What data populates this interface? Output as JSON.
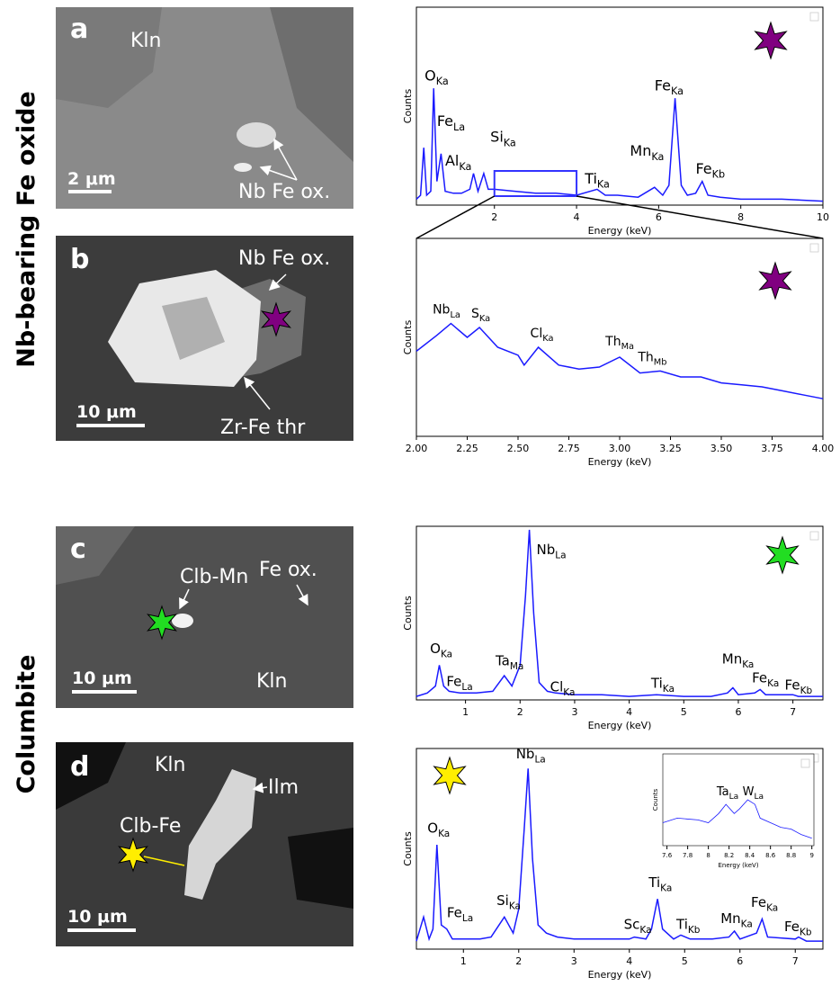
{
  "side_labels": [
    "Nb-bearing Fe oxide",
    "Columbite"
  ],
  "images": [
    {
      "letter": "a",
      "labels": [
        "Kln",
        "Nb Fe ox."
      ],
      "scale": "2 μm",
      "star_color": null
    },
    {
      "letter": "b",
      "labels": [
        "Nb Fe ox.",
        "Zr-Fe thr"
      ],
      "scale": "10 μm",
      "star_color": "#800080"
    },
    {
      "letter": "c",
      "labels": [
        "Clb-Mn",
        "Fe ox.",
        "Kln"
      ],
      "scale": "10 μm",
      "star_color": "#22dd22"
    },
    {
      "letter": "d",
      "labels": [
        "Kln",
        "Ilm",
        "Clb-Fe"
      ],
      "scale": "10 μm",
      "star_color": "#ffee00"
    }
  ],
  "chart_data": [
    {
      "type": "line",
      "color": "#1a1aff",
      "marker_color": "#800080",
      "xlabel": "Energy (keV)",
      "ylabel": "Counts",
      "xlim": [
        0.1,
        10
      ],
      "ylim": [
        0,
        100
      ],
      "xticks": [
        2,
        4,
        6,
        8,
        10
      ],
      "x": [
        0.1,
        0.2,
        0.28,
        0.35,
        0.45,
        0.52,
        0.6,
        0.7,
        0.8,
        1.0,
        1.2,
        1.4,
        1.49,
        1.6,
        1.74,
        1.85,
        2.0,
        2.5,
        3.0,
        3.5,
        4.0,
        4.5,
        4.7,
        5.0,
        5.5,
        5.9,
        6.1,
        6.25,
        6.4,
        6.55,
        6.7,
        6.9,
        7.06,
        7.2,
        7.5,
        8.0,
        9.0,
        10.0
      ],
      "values": [
        3,
        5,
        29,
        5,
        7,
        59,
        12,
        26,
        7,
        6,
        6,
        8,
        16,
        7,
        16,
        8,
        8,
        7,
        6,
        6,
        5,
        8,
        5,
        5,
        4,
        9,
        5,
        10,
        54,
        10,
        5,
        6,
        12,
        5,
        4,
        3,
        3,
        2
      ],
      "annotations": [
        {
          "text": "O",
          "sub": "Ka",
          "x": 0.3,
          "y": 63
        },
        {
          "text": "Fe",
          "sub": "La",
          "x": 0.6,
          "y": 40
        },
        {
          "text": "Al",
          "sub": "Ka",
          "x": 0.8,
          "y": 20
        },
        {
          "text": "Si",
          "sub": "Ka",
          "x": 1.9,
          "y": 32
        },
        {
          "text": "Ti",
          "sub": "Ka",
          "x": 4.2,
          "y": 11
        },
        {
          "text": "Mn",
          "sub": "Ka",
          "x": 5.3,
          "y": 25
        },
        {
          "text": "Fe",
          "sub": "Ka",
          "x": 5.9,
          "y": 58
        },
        {
          "text": "Fe",
          "sub": "Kb",
          "x": 6.9,
          "y": 16
        }
      ]
    },
    {
      "type": "line",
      "color": "#1a1aff",
      "marker_color": "#800080",
      "xlabel": "Energy (keV)",
      "ylabel": "Counts",
      "xlim": [
        2,
        4
      ],
      "ylim": [
        0,
        100
      ],
      "xticks": [
        {
          "value": 2,
          "label": "2.00"
        },
        {
          "value": 2.25,
          "label": "2.25"
        },
        {
          "value": 2.5,
          "label": "2.50"
        },
        {
          "value": 2.75,
          "label": "2.75"
        },
        {
          "value": 3,
          "label": "3.00"
        },
        {
          "value": 3.25,
          "label": "3.25"
        },
        {
          "value": 3.5,
          "label": "3.50"
        },
        {
          "value": 3.75,
          "label": "3.75"
        },
        {
          "value": 4,
          "label": "4.00"
        }
      ],
      "x": [
        2.0,
        2.1,
        2.17,
        2.25,
        2.31,
        2.4,
        2.5,
        2.53,
        2.6,
        2.7,
        2.8,
        2.9,
        3.0,
        3.1,
        3.2,
        3.3,
        3.4,
        3.5,
        3.6,
        3.7,
        3.8,
        3.9,
        4.0
      ],
      "values": [
        43,
        51,
        57,
        50,
        55,
        45,
        41,
        36,
        45,
        36,
        34,
        35,
        40,
        32,
        33,
        30,
        30,
        27,
        26,
        25,
        23,
        21,
        19
      ],
      "annotations": [
        {
          "text": "Nb",
          "sub": "La",
          "x": 2.08,
          "y": 62
        },
        {
          "text": "S",
          "sub": "Ka",
          "x": 2.27,
          "y": 60
        },
        {
          "text": "Cl",
          "sub": "Ka",
          "x": 2.56,
          "y": 50
        },
        {
          "text": "Th",
          "sub": "Ma",
          "x": 2.93,
          "y": 46
        },
        {
          "text": "Th",
          "sub": "Mb",
          "x": 3.09,
          "y": 38
        }
      ]
    },
    {
      "type": "line",
      "color": "#1a1aff",
      "marker_color": "#22dd22",
      "xlabel": "Energy (keV)",
      "ylabel": "Counts",
      "xlim": [
        0.1,
        7.55
      ],
      "ylim": [
        0,
        100
      ],
      "xticks": [
        1,
        2,
        3,
        4,
        5,
        6,
        7
      ],
      "x": [
        0.1,
        0.3,
        0.45,
        0.52,
        0.6,
        0.7,
        0.9,
        1.2,
        1.5,
        1.71,
        1.85,
        2.0,
        2.1,
        2.17,
        2.25,
        2.35,
        2.5,
        2.65,
        3.0,
        3.5,
        4.0,
        4.5,
        5.0,
        5.5,
        5.8,
        5.9,
        6.0,
        6.3,
        6.4,
        6.5,
        7.0,
        7.1,
        7.55
      ],
      "values": [
        2,
        4,
        8,
        20,
        8,
        5,
        4,
        4,
        5,
        14,
        8,
        20,
        60,
        98,
        50,
        10,
        5,
        4,
        3,
        3,
        2,
        3,
        2,
        2,
        4,
        7,
        3,
        4,
        6,
        3,
        3,
        2,
        2
      ],
      "annotations": [
        {
          "text": "O",
          "sub": "Ka",
          "x": 0.35,
          "y": 27
        },
        {
          "text": "Fe",
          "sub": "La",
          "x": 0.65,
          "y": 8
        },
        {
          "text": "Ta",
          "sub": "Ma",
          "x": 1.55,
          "y": 20
        },
        {
          "text": "Nb",
          "sub": "La",
          "x": 2.3,
          "y": 84
        },
        {
          "text": "Cl",
          "sub": "Ka",
          "x": 2.55,
          "y": 5
        },
        {
          "text": "Ti",
          "sub": "Ka",
          "x": 4.4,
          "y": 7
        },
        {
          "text": "Mn",
          "sub": "Ka",
          "x": 5.7,
          "y": 21
        },
        {
          "text": "Fe",
          "sub": "Ka",
          "x": 6.25,
          "y": 10
        },
        {
          "text": "Fe",
          "sub": "Kb",
          "x": 6.85,
          "y": 6
        }
      ]
    },
    {
      "type": "line",
      "color": "#1a1aff",
      "marker_color": "#ffee00",
      "xlabel": "Energy (keV)",
      "ylabel": "Counts",
      "xlim": [
        0.15,
        7.5
      ],
      "ylim": [
        0,
        100
      ],
      "xticks": [
        1,
        2,
        3,
        4,
        5,
        6,
        7
      ],
      "x": [
        0.15,
        0.28,
        0.38,
        0.45,
        0.52,
        0.6,
        0.7,
        0.8,
        1.0,
        1.3,
        1.5,
        1.74,
        1.9,
        2.0,
        2.1,
        2.17,
        2.25,
        2.35,
        2.5,
        2.7,
        3.0,
        3.5,
        4.0,
        4.09,
        4.3,
        4.4,
        4.51,
        4.6,
        4.8,
        4.93,
        5.1,
        5.5,
        5.8,
        5.9,
        6.0,
        6.3,
        6.4,
        6.5,
        7.0,
        7.06,
        7.2,
        7.5
      ],
      "values": [
        4,
        16,
        5,
        10,
        52,
        12,
        10,
        5,
        5,
        5,
        6,
        16,
        8,
        20,
        60,
        90,
        45,
        12,
        8,
        6,
        5,
        5,
        5,
        6,
        5,
        10,
        25,
        10,
        5,
        7,
        5,
        5,
        6,
        9,
        5,
        8,
        15,
        6,
        5,
        6,
        4,
        4
      ],
      "annotations": [
        {
          "text": "O",
          "sub": "Ka",
          "x": 0.35,
          "y": 58
        },
        {
          "text": "Fe",
          "sub": "La",
          "x": 0.7,
          "y": 16
        },
        {
          "text": "Si",
          "sub": "Ka",
          "x": 1.6,
          "y": 22
        },
        {
          "text": "Nb",
          "sub": "La",
          "x": 1.95,
          "y": 95
        },
        {
          "text": "Sc",
          "sub": "Ka",
          "x": 3.9,
          "y": 10
        },
        {
          "text": "Ti",
          "sub": "Ka",
          "x": 4.35,
          "y": 31
        },
        {
          "text": "Ti",
          "sub": "Kb",
          "x": 4.85,
          "y": 10
        },
        {
          "text": "Mn",
          "sub": "Ka",
          "x": 5.65,
          "y": 13
        },
        {
          "text": "Fe",
          "sub": "Ka",
          "x": 6.2,
          "y": 21
        },
        {
          "text": "Fe",
          "sub": "Kb",
          "x": 6.8,
          "y": 9
        }
      ]
    },
    {
      "type": "line",
      "color": "#1a1aff",
      "xlabel": "Energy (keV)",
      "ylabel": "Counts",
      "xlim": [
        7.56,
        9.02
      ],
      "ylim": [
        0,
        100
      ],
      "xticks": [
        7.6,
        7.8,
        8.0,
        8.2,
        8.4,
        8.6,
        8.8,
        9.0
      ],
      "x": [
        7.56,
        7.7,
        7.9,
        8.0,
        8.1,
        8.17,
        8.25,
        8.3,
        8.38,
        8.45,
        8.5,
        8.6,
        8.7,
        8.8,
        8.9,
        9.0
      ],
      "values": [
        25,
        30,
        28,
        25,
        35,
        45,
        35,
        40,
        50,
        45,
        30,
        25,
        20,
        18,
        12,
        8
      ],
      "annotations": [
        {
          "text": "Ta",
          "sub": "La",
          "x": 8.08,
          "y": 55
        },
        {
          "text": "W",
          "sub": "La",
          "x": 8.33,
          "y": 55
        }
      ]
    }
  ]
}
